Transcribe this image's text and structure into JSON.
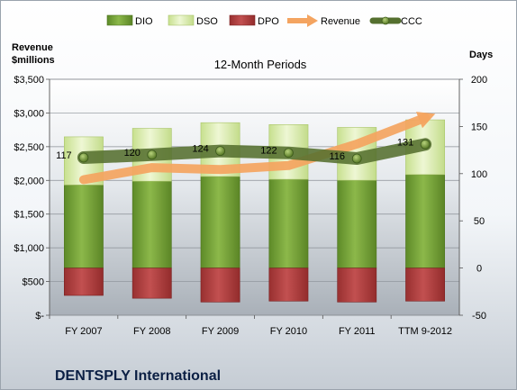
{
  "chart_data": {
    "type": "bar",
    "title": "DENTSPLY International",
    "subtitle": "12-Month Periods",
    "y_left_label": [
      "Revenue",
      "$millions"
    ],
    "y_right_label": "Days",
    "categories": [
      "FY 2007",
      "FY 2008",
      "FY 2009",
      "FY 2010",
      "FY 2011",
      "TTM 9-2012"
    ],
    "ylim_left": [
      0,
      3500
    ],
    "y_left_ticks": [
      0,
      500,
      1000,
      1500,
      2000,
      2500,
      3000,
      3500
    ],
    "y_left_tick_labels": [
      "$-",
      "$500",
      "$1,000",
      "$1,500",
      "$2,000",
      "$2,500",
      "$3,000",
      "$3,500"
    ],
    "ylim_right": [
      -50,
      200
    ],
    "y_right_ticks": [
      -50,
      0,
      50,
      100,
      150,
      200
    ],
    "grid": true,
    "legend_position": "top",
    "series": [
      {
        "name": "DIO",
        "type": "stacked-bar",
        "axis": "right",
        "color": "#7aa03a",
        "values": [
          88,
          92,
          97,
          94,
          93,
          99
        ]
      },
      {
        "name": "DSO",
        "type": "stacked-bar",
        "axis": "right",
        "color": "#d9ebad",
        "values": [
          51,
          56,
          57,
          58,
          56,
          58
        ]
      },
      {
        "name": "DPO",
        "type": "stacked-bar-negative",
        "axis": "right",
        "color": "#b03a3a",
        "values": [
          -29,
          -32,
          -36,
          -35,
          -36,
          -35
        ]
      },
      {
        "name": "Revenue",
        "type": "line",
        "axis": "left",
        "color": "#f4a460",
        "values": [
          2010,
          2190,
          2160,
          2220,
          2540,
          2930
        ]
      },
      {
        "name": "CCC",
        "type": "line",
        "axis": "right",
        "color": "#4f6f2f",
        "values": [
          117,
          120,
          124,
          122,
          116,
          131
        ]
      }
    ],
    "data_labels": {
      "series": "CCC",
      "values": [
        "117",
        "120",
        "124",
        "122",
        "116",
        "131"
      ]
    }
  }
}
